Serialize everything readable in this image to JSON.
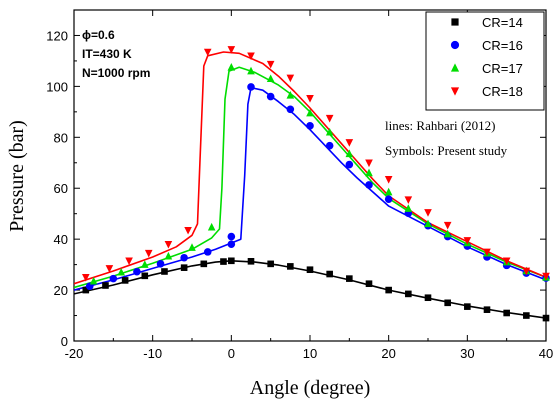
{
  "chart_data": {
    "type": "line",
    "xlabel": "Angle (degree)",
    "ylabel": "Pressure (bar)",
    "xlim": [
      -20,
      40
    ],
    "ylim": [
      0,
      130
    ],
    "xticks": [
      -20,
      -10,
      0,
      10,
      20,
      30,
      40
    ],
    "yticks": [
      0,
      20,
      40,
      60,
      80,
      100,
      120
    ],
    "grid": false,
    "legend_position": "top-right",
    "conditions": [
      "ϕ=0.6",
      "IT=430 K",
      "N=1000 rpm"
    ],
    "annotations": [
      "lines: Rahbari (2012)",
      "Symbols: Present study"
    ],
    "series": [
      {
        "name": "CR=14",
        "color": "#000000",
        "marker": "square",
        "line": [
          [
            -20,
            18.5
          ],
          [
            -15,
            22
          ],
          [
            -10,
            26
          ],
          [
            -5,
            29.5
          ],
          [
            -2,
            31
          ],
          [
            0,
            31.5
          ],
          [
            3,
            31
          ],
          [
            6,
            29.8
          ],
          [
            10,
            27.5
          ],
          [
            15,
            24
          ],
          [
            20,
            20
          ],
          [
            25,
            16.8
          ],
          [
            30,
            13.8
          ],
          [
            35,
            11.2
          ],
          [
            40,
            9
          ]
        ],
        "symbols": [
          [
            -18.5,
            20
          ],
          [
            -16,
            21.8
          ],
          [
            -13.5,
            23.8
          ],
          [
            -11,
            25.6
          ],
          [
            -8.5,
            27.3
          ],
          [
            -6,
            28.8
          ],
          [
            -3.5,
            30.3
          ],
          [
            -1,
            31.2
          ],
          [
            0,
            31.5
          ],
          [
            2.5,
            31.3
          ],
          [
            5,
            30.3
          ],
          [
            7.5,
            29.3
          ],
          [
            10,
            28
          ],
          [
            12.5,
            26.3
          ],
          [
            15,
            24.5
          ],
          [
            17.5,
            22.5
          ],
          [
            20,
            20
          ],
          [
            22.5,
            18.5
          ],
          [
            25,
            17
          ],
          [
            27.5,
            15
          ],
          [
            30,
            13.5
          ],
          [
            32.5,
            12.3
          ],
          [
            35,
            11
          ],
          [
            37.5,
            10
          ],
          [
            40,
            9
          ]
        ]
      },
      {
        "name": "CR=16",
        "color": "#0000ff",
        "marker": "circle",
        "line": [
          [
            -20,
            20
          ],
          [
            -15,
            24
          ],
          [
            -10,
            28.5
          ],
          [
            -5,
            33
          ],
          [
            -2,
            36
          ],
          [
            0,
            38.5
          ],
          [
            1.2,
            40
          ],
          [
            1.7,
            65
          ],
          [
            2.1,
            93
          ],
          [
            2.5,
            99.5
          ],
          [
            4,
            98.5
          ],
          [
            6,
            94
          ],
          [
            8,
            89
          ],
          [
            10,
            83
          ],
          [
            12,
            76.5
          ],
          [
            14,
            70
          ],
          [
            16,
            64
          ],
          [
            18,
            58.5
          ],
          [
            20,
            53
          ],
          [
            25,
            45
          ],
          [
            30,
            37
          ],
          [
            35,
            30
          ],
          [
            40,
            24
          ]
        ],
        "symbols": [
          [
            -18,
            21.5
          ],
          [
            -15,
            24.5
          ],
          [
            -12,
            27.2
          ],
          [
            -9,
            30.3
          ],
          [
            -6,
            32.7
          ],
          [
            -3,
            35
          ],
          [
            0,
            38
          ],
          [
            0,
            41
          ],
          [
            2.5,
            99.8
          ],
          [
            5,
            96
          ],
          [
            7.5,
            91
          ],
          [
            10,
            84.5
          ],
          [
            12.5,
            76.7
          ],
          [
            15,
            69.3
          ],
          [
            17.5,
            61.3
          ],
          [
            20,
            55.7
          ],
          [
            22.5,
            50.2
          ],
          [
            25,
            45.3
          ],
          [
            27.5,
            41
          ],
          [
            30,
            37.3
          ],
          [
            32.5,
            33
          ],
          [
            35,
            29.7
          ],
          [
            37.5,
            26.7
          ],
          [
            40,
            24.7
          ]
        ]
      },
      {
        "name": "CR=17",
        "color": "#00dd00",
        "marker": "triangle-up",
        "line": [
          [
            -20,
            21
          ],
          [
            -15,
            25.5
          ],
          [
            -10,
            30.5
          ],
          [
            -5,
            36
          ],
          [
            -2.5,
            40.5
          ],
          [
            -1.5,
            44
          ],
          [
            -1.2,
            60
          ],
          [
            -0.8,
            95
          ],
          [
            -0.3,
            106
          ],
          [
            1,
            107.5
          ],
          [
            3,
            105.5
          ],
          [
            6,
            100.5
          ],
          [
            8,
            96
          ],
          [
            10,
            90
          ],
          [
            12,
            83
          ],
          [
            14,
            76
          ],
          [
            16,
            69
          ],
          [
            18,
            62
          ],
          [
            20,
            56
          ],
          [
            25,
            46
          ],
          [
            30,
            38
          ],
          [
            35,
            31
          ],
          [
            40,
            25
          ]
        ],
        "symbols": [
          [
            -17.5,
            23.5
          ],
          [
            -14,
            27
          ],
          [
            -11,
            30
          ],
          [
            -8,
            33.3
          ],
          [
            -5,
            36.7
          ],
          [
            -2.5,
            44.7
          ],
          [
            0,
            107.5
          ],
          [
            2.5,
            106
          ],
          [
            5,
            103
          ],
          [
            7.5,
            96.5
          ],
          [
            10,
            89.5
          ],
          [
            12.5,
            82
          ],
          [
            15,
            73.5
          ],
          [
            17.5,
            66
          ],
          [
            20,
            58.5
          ],
          [
            22.5,
            52
          ],
          [
            25,
            46
          ],
          [
            27.5,
            42
          ],
          [
            30,
            38.5
          ],
          [
            32.5,
            34.5
          ],
          [
            35,
            31
          ],
          [
            37.5,
            27.5
          ],
          [
            40,
            25
          ]
        ]
      },
      {
        "name": "CR=18",
        "color": "#ff0000",
        "marker": "triangle-down",
        "line": [
          [
            -20,
            22.5
          ],
          [
            -15,
            27.5
          ],
          [
            -10,
            33
          ],
          [
            -7,
            37
          ],
          [
            -5,
            41.5
          ],
          [
            -4.3,
            46
          ],
          [
            -4,
            70
          ],
          [
            -3.5,
            108
          ],
          [
            -3,
            112
          ],
          [
            -1,
            113.5
          ],
          [
            1,
            113
          ],
          [
            4,
            109
          ],
          [
            6,
            104
          ],
          [
            8,
            98
          ],
          [
            10,
            91.5
          ],
          [
            12,
            84.5
          ],
          [
            14,
            77.5
          ],
          [
            16,
            70.5
          ],
          [
            18,
            63.5
          ],
          [
            20,
            57
          ],
          [
            25,
            46.5
          ],
          [
            30,
            39
          ],
          [
            35,
            31.5
          ],
          [
            40,
            25
          ]
        ],
        "symbols": [
          [
            -18.5,
            25
          ],
          [
            -15.5,
            28.5
          ],
          [
            -13,
            31.5
          ],
          [
            -10.5,
            34.5
          ],
          [
            -8,
            38
          ],
          [
            -5.5,
            43.5
          ],
          [
            -3,
            113.5
          ],
          [
            0,
            114.5
          ],
          [
            2.5,
            112
          ],
          [
            5,
            108.7
          ],
          [
            7.5,
            103.3
          ],
          [
            10,
            95.3
          ],
          [
            12.5,
            87.5
          ],
          [
            15,
            78
          ],
          [
            17.5,
            70
          ],
          [
            20,
            63.5
          ],
          [
            22.5,
            55.5
          ],
          [
            25,
            50.5
          ],
          [
            27.5,
            45.5
          ],
          [
            30,
            39.5
          ],
          [
            32.5,
            35
          ],
          [
            35,
            31.5
          ],
          [
            37.5,
            27.5
          ],
          [
            40,
            25.5
          ]
        ]
      }
    ]
  }
}
